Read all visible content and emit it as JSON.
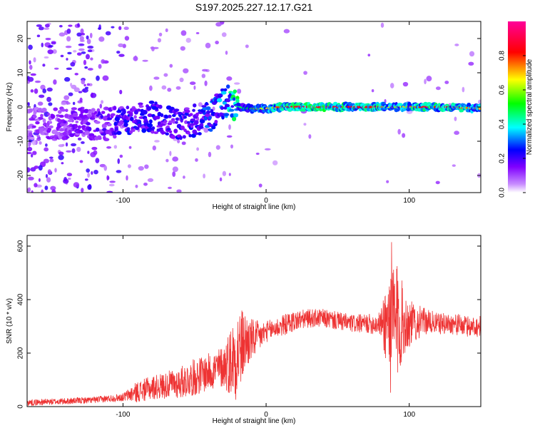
{
  "figure_title": "S197.2025.227.12.17.G21",
  "chart_data": [
    {
      "type": "heatmap",
      "title": "S197.2025.227.12.17.G21",
      "xlabel": "Height of straight line (km)",
      "ylabel": "Frequency (Hz)",
      "xlim": [
        -167,
        150
      ],
      "ylim": [
        -25,
        25
      ],
      "xticks": [
        -100,
        0,
        100
      ],
      "yticks": [
        -20,
        -10,
        0,
        10,
        20
      ],
      "xtick_labels": [
        "-100",
        "0",
        "100"
      ],
      "ytick_labels": [
        "-20",
        "-10",
        "0",
        "10",
        "20"
      ],
      "colorbar": {
        "label": "Normalized spectral amplitude",
        "range": [
          0,
          1
        ],
        "ticks": [
          0.0,
          0.2,
          0.4,
          0.6,
          0.8
        ],
        "tick_labels": [
          "0.0",
          "0.2",
          "0.4",
          "0.6",
          "0.8"
        ],
        "colormap": [
          "#ffffff",
          "#9900ff",
          "#0000ff",
          "#00ffff",
          "#00ff00",
          "#ffff00",
          "#ff0000",
          "#ff00aa"
        ]
      },
      "ridge": {
        "x": [
          -167,
          -120,
          -100,
          -80,
          -60,
          -40,
          -30,
          -25,
          -20,
          -10,
          0,
          10,
          20,
          60,
          80,
          90,
          100,
          110,
          130,
          150
        ],
        "frequency": [
          -5,
          -5,
          -4,
          -3,
          -5,
          -3,
          1,
          2,
          0,
          -0.5,
          -0.5,
          0,
          0,
          0,
          0,
          0,
          0,
          0,
          0,
          -0.5
        ],
        "amplitude": [
          0.1,
          0.15,
          0.2,
          0.22,
          0.2,
          0.25,
          0.3,
          0.35,
          0.45,
          0.55,
          0.65,
          0.8,
          0.85,
          0.85,
          0.8,
          0.6,
          0.75,
          0.85,
          0.8,
          0.7
        ]
      }
    },
    {
      "type": "line",
      "title": "",
      "xlabel": "Height of straight line (km)",
      "ylabel": "SNR (10 * v/v)",
      "xlim": [
        -167,
        150
      ],
      "ylim": [
        0,
        640
      ],
      "xticks": [
        -100,
        0,
        100
      ],
      "yticks": [
        0,
        200,
        400,
        600
      ],
      "xtick_labels": [
        "-100",
        "0",
        "100"
      ],
      "ytick_labels": [
        "0",
        "200",
        "400",
        "600"
      ],
      "color": "#ee3333",
      "series": [
        {
          "name": "SNR",
          "x": [
            -167,
            -140,
            -120,
            -100,
            -90,
            -80,
            -70,
            -60,
            -50,
            -40,
            -30,
            -25,
            -20,
            -15,
            -10,
            -5,
            0,
            10,
            20,
            30,
            40,
            50,
            60,
            70,
            80,
            85,
            88,
            90,
            93,
            95,
            100,
            110,
            120,
            130,
            140,
            150
          ],
          "baseline": [
            15,
            20,
            25,
            35,
            55,
            70,
            80,
            90,
            110,
            130,
            150,
            170,
            200,
            240,
            250,
            260,
            280,
            300,
            320,
            330,
            330,
            320,
            310,
            310,
            310,
            320,
            310,
            300,
            320,
            320,
            310,
            320,
            310,
            310,
            300,
            300
          ],
          "amplitude": [
            12,
            12,
            12,
            15,
            40,
            45,
            50,
            60,
            70,
            70,
            80,
            130,
            180,
            120,
            80,
            60,
            40,
            40,
            40,
            35,
            35,
            35,
            35,
            35,
            45,
            200,
            320,
            260,
            220,
            150,
            90,
            50,
            40,
            40,
            40,
            40
          ]
        }
      ]
    }
  ]
}
